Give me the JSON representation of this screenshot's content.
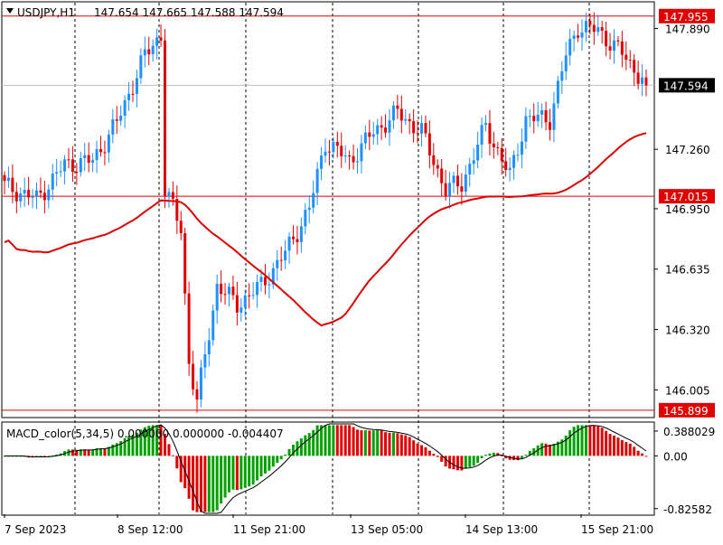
{
  "chart_data": [
    {
      "type": "candlestick",
      "symbol": "USDJPY",
      "timeframe": "H1",
      "title": "USDJPY,H1",
      "ohlc_label": "147.654 147.665 147.588 147.594",
      "y_ticks": [
        "147.890",
        "147.260",
        "146.950",
        "146.635",
        "146.320",
        "146.005"
      ],
      "y_tick_values": [
        147.89,
        147.26,
        146.95,
        146.635,
        146.32,
        146.005
      ],
      "ylim": [
        145.87,
        148.02
      ],
      "x_labels": [
        "7 Sep 2023",
        "8 Sep 12:00",
        "11 Sep 21:00",
        "13 Sep 05:00",
        "14 Sep 13:00",
        "15 Sep 21:00"
      ],
      "horizontal_lines": [
        {
          "price": 147.955,
          "label": "147.955",
          "color": "#e00000"
        },
        {
          "price": 147.015,
          "label": "147.015",
          "color": "#e00000"
        },
        {
          "price": 145.899,
          "label": "145.899",
          "color": "#e00000"
        },
        {
          "price": 147.594,
          "label": "147.594",
          "color": "#000000",
          "bid": true
        }
      ],
      "ma_color": "#dd0000",
      "up_color": "#1e90ff",
      "down_color": "#e00000",
      "grid": "vertical-dashed",
      "key_points": [
        {
          "bar": 0,
          "close": 147.07
        },
        {
          "bar": 8,
          "close": 147.0
        },
        {
          "bar": 15,
          "close": 147.18
        },
        {
          "bar": 22,
          "close": 147.2
        },
        {
          "bar": 28,
          "close": 147.4
        },
        {
          "bar": 35,
          "close": 147.75
        },
        {
          "bar": 39,
          "close": 147.86
        },
        {
          "bar": 40,
          "close": 147.05
        },
        {
          "bar": 44,
          "close": 146.85
        },
        {
          "bar": 46,
          "close": 146.15
        },
        {
          "bar": 48,
          "close": 145.94
        },
        {
          "bar": 53,
          "close": 146.55
        },
        {
          "bar": 58,
          "close": 146.45
        },
        {
          "bar": 64,
          "close": 146.55
        },
        {
          "bar": 70,
          "close": 146.72
        },
        {
          "bar": 76,
          "close": 146.95
        },
        {
          "bar": 80,
          "close": 147.3
        },
        {
          "bar": 86,
          "close": 147.2
        },
        {
          "bar": 92,
          "close": 147.35
        },
        {
          "bar": 98,
          "close": 147.45
        },
        {
          "bar": 104,
          "close": 147.35
        },
        {
          "bar": 110,
          "close": 147.05
        },
        {
          "bar": 114,
          "close": 147.08
        },
        {
          "bar": 120,
          "close": 147.38
        },
        {
          "bar": 126,
          "close": 147.12
        },
        {
          "bar": 130,
          "close": 147.42
        },
        {
          "bar": 136,
          "close": 147.42
        },
        {
          "bar": 140,
          "close": 147.75
        },
        {
          "bar": 143,
          "close": 147.9
        },
        {
          "bar": 148,
          "close": 147.88
        },
        {
          "bar": 154,
          "close": 147.76
        },
        {
          "bar": 160,
          "close": 147.6
        }
      ],
      "bar_count": 161
    },
    {
      "type": "histogram",
      "title": "MACD_color(5,34,5) 0.000000 0.000000 -0.004407",
      "y_ticks": [
        "0.388029",
        "0.00",
        "-0.82582"
      ],
      "y_tick_values": [
        0.388029,
        0.0,
        -0.82582
      ],
      "ylim": [
        -0.9,
        0.5
      ],
      "up_color": "#00a000",
      "down_color": "#e00000",
      "signal_color": "#000000"
    }
  ],
  "price_box": {
    "current": "147.594"
  }
}
